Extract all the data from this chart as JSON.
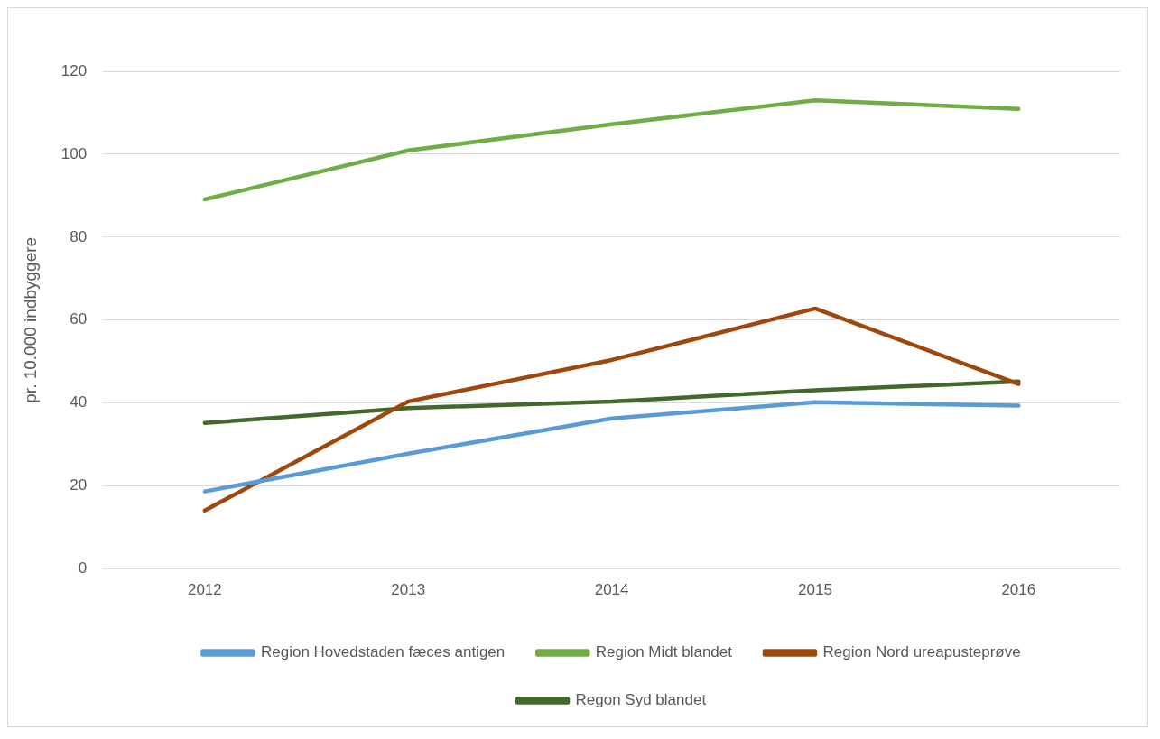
{
  "chart_data": {
    "type": "line",
    "ylabel": "pr. 10.000 indbyggere",
    "categories": [
      "2012",
      "2013",
      "2014",
      "2015",
      "2016"
    ],
    "series": [
      {
        "name": "Region Hovedstaden fæces antigen",
        "color": "#5b9bd5",
        "values": [
          18.7,
          27.8,
          36.3,
          40.2,
          39.4
        ]
      },
      {
        "name": "Region Midt blandet",
        "color": "#70ad47",
        "values": [
          89.1,
          100.9,
          107.2,
          113,
          110.9
        ]
      },
      {
        "name": "Region Nord ureapusteprøve",
        "color": "#9e480e",
        "values": [
          14.1,
          40.4,
          50.4,
          62.8,
          44.6
        ]
      },
      {
        "name": "Regon Syd blandet",
        "color": "#43682b",
        "values": [
          35.2,
          38.8,
          40.4,
          43.1,
          45.2
        ]
      }
    ],
    "ylim": [
      0,
      120
    ],
    "yticks": [
      0,
      20,
      40,
      60,
      80,
      100,
      120
    ],
    "grid": "y",
    "legend": "bottom",
    "marker": "none",
    "line_style": "solid"
  }
}
